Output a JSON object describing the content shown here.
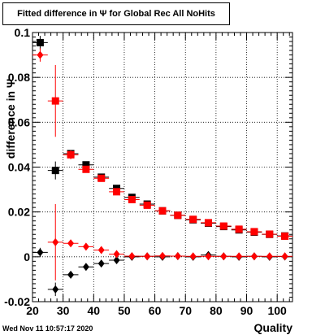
{
  "chart_data": {
    "type": "scatter",
    "title": "Fitted difference in  Ψ  for Global Rec All NoHits",
    "xlabel": "Quality",
    "ylabel": "difference in  Ψ",
    "xlim": [
      20,
      105
    ],
    "ylim": [
      -0.02,
      0.1
    ],
    "x_ticks": [
      "20",
      "30",
      "40",
      "50",
      "60",
      "70",
      "80",
      "90",
      "100"
    ],
    "y_ticks": [
      "-0.02",
      "0",
      "0.02",
      "0.04",
      "0.06",
      "0.08",
      "0.1"
    ],
    "grid": true,
    "series": [
      {
        "marker": "square",
        "color": "#000000",
        "x": [
          22.5,
          27.5,
          32.5,
          37.5,
          42.5,
          47.5,
          52.5,
          57.5,
          62.5,
          67.5,
          72.5,
          77.5,
          82.5,
          87.5,
          92.5,
          97.5,
          102.5
        ],
        "y": [
          0.0955,
          0.0385,
          0.046,
          0.041,
          0.0355,
          0.0305,
          0.0265,
          0.0235,
          0.0205,
          0.0185,
          0.0165,
          0.015,
          0.0135,
          0.012,
          0.011,
          0.01,
          0.0093
        ],
        "err": [
          0.003,
          0.004,
          0.0015,
          0.001,
          0.001,
          0.001,
          0.001,
          0.0008,
          0.0008,
          0.0008,
          0.0008,
          0.0008,
          0.0008,
          0.0008,
          0.0008,
          0.0008,
          0.0008
        ]
      },
      {
        "marker": "square",
        "color": "#ff0000",
        "x": [
          22.5,
          27.5,
          32.5,
          37.5,
          42.5,
          47.5,
          52.5,
          57.5,
          62.5,
          67.5,
          72.5,
          77.5,
          82.5,
          87.5,
          92.5,
          97.5,
          102.5
        ],
        "y": [
          null,
          0.0695,
          0.0455,
          0.039,
          0.035,
          0.029,
          0.0255,
          0.023,
          0.0205,
          0.0185,
          0.0167,
          0.0152,
          0.0137,
          0.0123,
          0.0112,
          0.0101,
          0.0092
        ],
        "err": [
          0,
          0.016,
          0.002,
          0.001,
          0.001,
          0.001,
          0.001,
          0.0008,
          0.0008,
          0.0008,
          0.0008,
          0.0008,
          0.0008,
          0.0008,
          0.0008,
          0.0008,
          0.0008
        ]
      },
      {
        "marker": "diamond",
        "color": "#000000",
        "x": [
          22.5,
          27.5,
          32.5,
          37.5,
          42.5,
          47.5,
          52.5,
          57.5,
          62.5,
          67.5,
          72.5,
          77.5,
          82.5,
          87.5,
          92.5,
          97.5,
          102.5
        ],
        "y": [
          0.002,
          -0.0145,
          -0.008,
          -0.0045,
          -0.003,
          -0.0015,
          0.0,
          0.0002,
          0.0,
          0.0003,
          0.0,
          0.0008,
          0.0002,
          0.0,
          0.0002,
          0.0,
          0.0001
        ],
        "err": [
          0.002,
          0.003,
          0.0015,
          0.001,
          0.0008,
          0.0006,
          0.0005,
          0.0004,
          0.0004,
          0.0004,
          0.0004,
          0.0004,
          0.0004,
          0.0004,
          0.0004,
          0.0004,
          0.0004
        ]
      },
      {
        "marker": "diamond",
        "color": "#ff0000",
        "x": [
          22.5,
          27.5,
          32.5,
          37.5,
          42.5,
          47.5,
          52.5,
          57.5,
          62.5,
          67.5,
          72.5,
          77.5,
          82.5,
          87.5,
          92.5,
          97.5,
          102.5
        ],
        "y": [
          0.09,
          0.0065,
          0.006,
          0.0045,
          0.003,
          0.0012,
          0.0003,
          0.0002,
          0.0004,
          0.0003,
          0.0002,
          0.0002,
          0.0002,
          0.0002,
          0.0002,
          0.0002,
          0.0002
        ],
        "err": [
          0.003,
          0.017,
          0.001,
          0.0008,
          0.0006,
          0.0005,
          0.0004,
          0.0004,
          0.0004,
          0.0004,
          0.0004,
          0.0004,
          0.0004,
          0.0004,
          0.0004,
          0.0004,
          0.0004
        ]
      }
    ]
  },
  "footer": {
    "timestamp": "Wed Nov 11 10:57:17 2020"
  }
}
